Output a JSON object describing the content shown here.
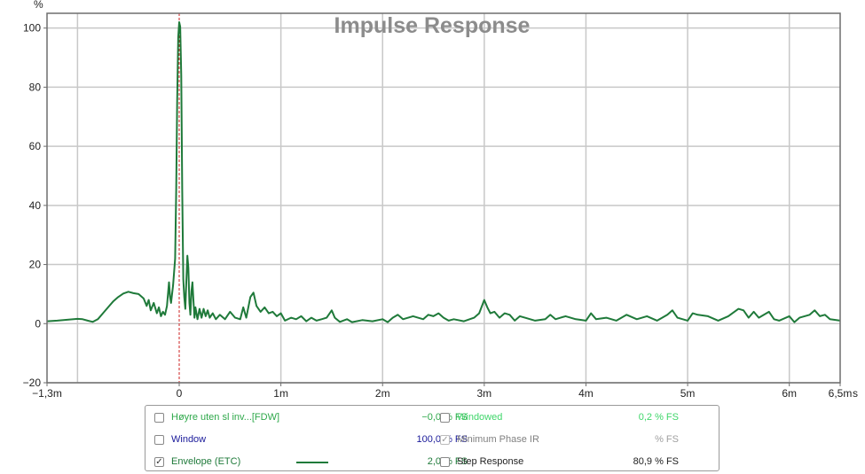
{
  "chart_data": {
    "type": "line",
    "title": "Impulse Response",
    "y_unit": "%",
    "x_unit": "s",
    "xlim": [
      -1.3,
      6.5
    ],
    "ylim": [
      -20,
      105
    ],
    "x_ticks": [
      {
        "value": -1.3,
        "label": "−1,3m"
      },
      {
        "value": 0,
        "label": "0"
      },
      {
        "value": 1,
        "label": "1m"
      },
      {
        "value": 2,
        "label": "2m"
      },
      {
        "value": 3,
        "label": "3m"
      },
      {
        "value": 4,
        "label": "4m"
      },
      {
        "value": 5,
        "label": "5m"
      },
      {
        "value": 6,
        "label": "6m"
      },
      {
        "value": 6.5,
        "label": "6,5m"
      }
    ],
    "x_gridlines": [
      -1.0,
      1,
      2,
      3,
      4,
      5,
      6
    ],
    "y_ticks": [
      {
        "value": 100,
        "label": "100"
      },
      {
        "value": 80,
        "label": "80"
      },
      {
        "value": 60,
        "label": "60"
      },
      {
        "value": 40,
        "label": "40"
      },
      {
        "value": 20,
        "label": "20"
      },
      {
        "value": 0,
        "label": "0"
      },
      {
        "value": -20,
        "label": "−20"
      }
    ],
    "grid": true,
    "marker_x": 0,
    "series": [
      {
        "name": "Envelope (ETC)",
        "color": "#1f7a3a",
        "points": [
          [
            -1.3,
            0.8
          ],
          [
            -1.2,
            1.0
          ],
          [
            -1.1,
            1.3
          ],
          [
            -1.0,
            1.6
          ],
          [
            -0.95,
            1.5
          ],
          [
            -0.9,
            1.0
          ],
          [
            -0.85,
            0.6
          ],
          [
            -0.8,
            1.5
          ],
          [
            -0.75,
            3.5
          ],
          [
            -0.7,
            5.5
          ],
          [
            -0.65,
            7.5
          ],
          [
            -0.6,
            9.0
          ],
          [
            -0.55,
            10.2
          ],
          [
            -0.5,
            10.8
          ],
          [
            -0.45,
            10.3
          ],
          [
            -0.4,
            10.0
          ],
          [
            -0.35,
            8.5
          ],
          [
            -0.32,
            6.0
          ],
          [
            -0.3,
            8.0
          ],
          [
            -0.28,
            4.5
          ],
          [
            -0.25,
            7.0
          ],
          [
            -0.22,
            3.5
          ],
          [
            -0.2,
            5.5
          ],
          [
            -0.18,
            2.5
          ],
          [
            -0.16,
            4.0
          ],
          [
            -0.14,
            3.0
          ],
          [
            -0.12,
            6.0
          ],
          [
            -0.1,
            14.0
          ],
          [
            -0.09,
            9.0
          ],
          [
            -0.08,
            7.0
          ],
          [
            -0.06,
            13.0
          ],
          [
            -0.04,
            22.0
          ],
          [
            -0.03,
            45.0
          ],
          [
            -0.02,
            75.0
          ],
          [
            -0.01,
            97.0
          ],
          [
            0.0,
            102.0
          ],
          [
            0.01,
            100.5
          ],
          [
            0.02,
            84.0
          ],
          [
            0.03,
            45.0
          ],
          [
            0.04,
            15.0
          ],
          [
            0.05,
            9.0
          ],
          [
            0.06,
            5.0
          ],
          [
            0.07,
            14.0
          ],
          [
            0.08,
            23.0
          ],
          [
            0.09,
            19.0
          ],
          [
            0.1,
            7.0
          ],
          [
            0.11,
            3.0
          ],
          [
            0.12,
            11.0
          ],
          [
            0.13,
            14.0
          ],
          [
            0.14,
            8.0
          ],
          [
            0.15,
            2.0
          ],
          [
            0.16,
            5.5
          ],
          [
            0.18,
            1.5
          ],
          [
            0.2,
            5.0
          ],
          [
            0.22,
            2.0
          ],
          [
            0.24,
            5.0
          ],
          [
            0.26,
            2.5
          ],
          [
            0.28,
            4.5
          ],
          [
            0.3,
            2.0
          ],
          [
            0.33,
            3.5
          ],
          [
            0.36,
            1.5
          ],
          [
            0.4,
            3.0
          ],
          [
            0.45,
            1.5
          ],
          [
            0.5,
            4.0
          ],
          [
            0.55,
            2.0
          ],
          [
            0.6,
            1.5
          ],
          [
            0.63,
            5.5
          ],
          [
            0.66,
            2.0
          ],
          [
            0.7,
            9.0
          ],
          [
            0.73,
            10.5
          ],
          [
            0.76,
            6.0
          ],
          [
            0.8,
            4.0
          ],
          [
            0.84,
            5.5
          ],
          [
            0.88,
            3.5
          ],
          [
            0.92,
            4.0
          ],
          [
            0.96,
            2.5
          ],
          [
            1.0,
            3.5
          ],
          [
            1.04,
            1.0
          ],
          [
            1.1,
            2.0
          ],
          [
            1.15,
            1.5
          ],
          [
            1.2,
            2.5
          ],
          [
            1.25,
            0.8
          ],
          [
            1.3,
            2.0
          ],
          [
            1.35,
            1.0
          ],
          [
            1.4,
            1.5
          ],
          [
            1.45,
            2.0
          ],
          [
            1.5,
            4.5
          ],
          [
            1.53,
            2.0
          ],
          [
            1.58,
            0.6
          ],
          [
            1.65,
            1.5
          ],
          [
            1.7,
            0.5
          ],
          [
            1.8,
            1.2
          ],
          [
            1.9,
            0.8
          ],
          [
            2.0,
            1.5
          ],
          [
            2.05,
            0.5
          ],
          [
            2.1,
            2.0
          ],
          [
            2.15,
            3.0
          ],
          [
            2.2,
            1.5
          ],
          [
            2.3,
            2.5
          ],
          [
            2.4,
            1.5
          ],
          [
            2.45,
            3.0
          ],
          [
            2.5,
            2.5
          ],
          [
            2.55,
            3.5
          ],
          [
            2.6,
            2.0
          ],
          [
            2.65,
            1.0
          ],
          [
            2.7,
            1.5
          ],
          [
            2.8,
            0.8
          ],
          [
            2.9,
            2.0
          ],
          [
            2.95,
            3.5
          ],
          [
            3.0,
            8.0
          ],
          [
            3.03,
            5.5
          ],
          [
            3.06,
            3.5
          ],
          [
            3.1,
            4.0
          ],
          [
            3.15,
            2.0
          ],
          [
            3.2,
            3.5
          ],
          [
            3.25,
            3.0
          ],
          [
            3.3,
            1.0
          ],
          [
            3.35,
            2.5
          ],
          [
            3.4,
            2.0
          ],
          [
            3.5,
            1.0
          ],
          [
            3.6,
            1.5
          ],
          [
            3.65,
            3.0
          ],
          [
            3.7,
            1.5
          ],
          [
            3.8,
            2.5
          ],
          [
            3.9,
            1.5
          ],
          [
            4.0,
            1.0
          ],
          [
            4.05,
            3.5
          ],
          [
            4.1,
            1.5
          ],
          [
            4.2,
            2.0
          ],
          [
            4.3,
            1.0
          ],
          [
            4.4,
            3.0
          ],
          [
            4.5,
            1.5
          ],
          [
            4.6,
            2.5
          ],
          [
            4.7,
            1.0
          ],
          [
            4.8,
            3.0
          ],
          [
            4.85,
            4.5
          ],
          [
            4.9,
            2.0
          ],
          [
            5.0,
            1.0
          ],
          [
            5.05,
            3.5
          ],
          [
            5.1,
            3.0
          ],
          [
            5.2,
            2.5
          ],
          [
            5.3,
            1.0
          ],
          [
            5.4,
            2.5
          ],
          [
            5.5,
            5.0
          ],
          [
            5.55,
            4.5
          ],
          [
            5.6,
            2.0
          ],
          [
            5.65,
            4.0
          ],
          [
            5.7,
            2.0
          ],
          [
            5.8,
            4.0
          ],
          [
            5.85,
            1.5
          ],
          [
            5.9,
            1.0
          ],
          [
            6.0,
            2.5
          ],
          [
            6.05,
            0.5
          ],
          [
            6.1,
            2.0
          ],
          [
            6.2,
            3.0
          ],
          [
            6.25,
            4.5
          ],
          [
            6.3,
            2.5
          ],
          [
            6.35,
            3.0
          ],
          [
            6.4,
            1.5
          ],
          [
            6.5,
            1.0
          ]
        ]
      }
    ]
  },
  "legend": {
    "items": [
      {
        "label": "Høyre uten sl inv...[FDW]",
        "value": "−0,0 % FS",
        "checked": false,
        "color": "#2ea84a",
        "value_color": "#2ea84a",
        "dim": false,
        "swatch": false
      },
      {
        "label": "Windowed",
        "value": "0,2 % FS",
        "checked": false,
        "color": "#3fd66a",
        "value_color": "#3fd66a",
        "dim": false,
        "swatch": false
      },
      {
        "label": "Window",
        "value": "100,0 % FS",
        "checked": false,
        "color": "#1a1a9a",
        "value_color": "#1a1a9a",
        "dim": false,
        "swatch": false
      },
      {
        "label": "Minimum Phase IR",
        "value": "% FS",
        "checked": true,
        "color": "#808080",
        "value_color": "#a0a0a0",
        "dim": true,
        "swatch": false
      },
      {
        "label": "Envelope (ETC)",
        "value": "2,0 % FS",
        "checked": true,
        "color": "#1f7a3a",
        "value_color": "#1f7a3a",
        "dim": false,
        "swatch": true
      },
      {
        "label": "Step Response",
        "value": "80,9 % FS",
        "checked": false,
        "color": "#222222",
        "value_color": "#222222",
        "dim": false,
        "swatch": false
      }
    ]
  },
  "colors": {
    "grid": "#c8c8c8",
    "frame": "#6e6e6e",
    "marker": "#cc2020",
    "check": "✓"
  }
}
